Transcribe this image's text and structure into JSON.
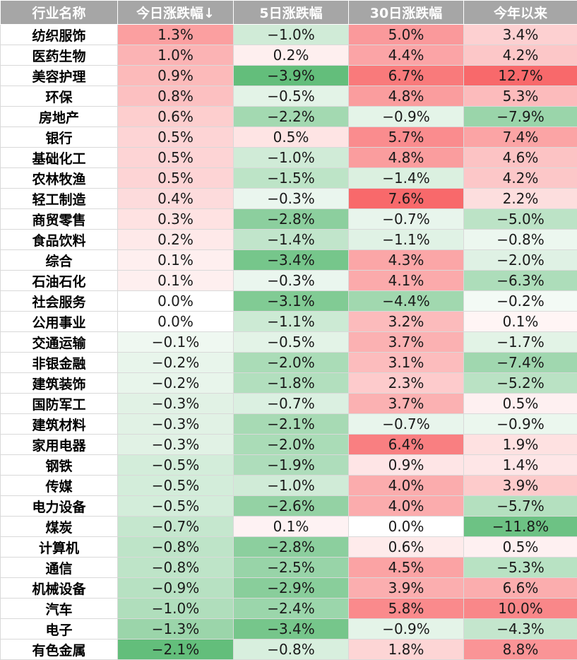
{
  "chart_data": {
    "type": "table",
    "columns": [
      "行业名称",
      "今日涨跌幅↓",
      "5日涨跌幅",
      "30日涨跌幅",
      "今年以来"
    ],
    "rows": [
      {
        "name": "纺织服饰",
        "values": [
          1.3,
          -1.0,
          5.0,
          3.4
        ]
      },
      {
        "name": "医药生物",
        "values": [
          1.0,
          0.2,
          4.4,
          4.2
        ]
      },
      {
        "name": "美容护理",
        "values": [
          0.9,
          -3.9,
          6.7,
          12.7
        ]
      },
      {
        "name": "环保",
        "values": [
          0.8,
          -0.5,
          4.8,
          5.3
        ]
      },
      {
        "name": "房地产",
        "values": [
          0.6,
          -2.2,
          -0.9,
          -7.9
        ]
      },
      {
        "name": "银行",
        "values": [
          0.5,
          0.5,
          5.7,
          7.4
        ]
      },
      {
        "name": "基础化工",
        "values": [
          0.5,
          -1.0,
          4.8,
          4.6
        ]
      },
      {
        "name": "农林牧渔",
        "values": [
          0.5,
          -1.5,
          -1.4,
          4.2
        ]
      },
      {
        "name": "轻工制造",
        "values": [
          0.4,
          -0.3,
          7.6,
          2.2
        ]
      },
      {
        "name": "商贸零售",
        "values": [
          0.3,
          -2.8,
          -0.7,
          -5.0
        ]
      },
      {
        "name": "食品饮料",
        "values": [
          0.2,
          -1.4,
          -1.1,
          -0.8
        ]
      },
      {
        "name": "综合",
        "values": [
          0.1,
          -3.4,
          4.3,
          -2.0
        ]
      },
      {
        "name": "石油石化",
        "values": [
          0.1,
          -0.3,
          4.1,
          -6.3
        ]
      },
      {
        "name": "社会服务",
        "values": [
          0.0,
          -3.1,
          -4.4,
          -0.2
        ]
      },
      {
        "name": "公用事业",
        "values": [
          0.0,
          -1.1,
          3.2,
          0.1
        ]
      },
      {
        "name": "交通运输",
        "values": [
          -0.1,
          -0.5,
          3.7,
          -1.7
        ]
      },
      {
        "name": "非银金融",
        "values": [
          -0.2,
          -2.0,
          3.1,
          -7.4
        ]
      },
      {
        "name": "建筑装饰",
        "values": [
          -0.2,
          -1.8,
          2.3,
          -5.2
        ]
      },
      {
        "name": "国防军工",
        "values": [
          -0.3,
          -0.7,
          3.7,
          0.5
        ]
      },
      {
        "name": "建筑材料",
        "values": [
          -0.3,
          -2.1,
          -0.7,
          -0.9
        ]
      },
      {
        "name": "家用电器",
        "values": [
          -0.3,
          -2.0,
          6.4,
          1.9
        ]
      },
      {
        "name": "钢铁",
        "values": [
          -0.5,
          -1.9,
          0.9,
          1.4
        ]
      },
      {
        "name": "传媒",
        "values": [
          -0.5,
          -1.0,
          4.0,
          3.9
        ]
      },
      {
        "name": "电力设备",
        "values": [
          -0.5,
          -2.6,
          4.0,
          -5.7
        ]
      },
      {
        "name": "煤炭",
        "values": [
          -0.7,
          0.1,
          0.0,
          -11.8
        ]
      },
      {
        "name": "计算机",
        "values": [
          -0.8,
          -2.8,
          0.6,
          0.5
        ]
      },
      {
        "name": "通信",
        "values": [
          -0.8,
          -2.5,
          4.5,
          -5.3
        ]
      },
      {
        "name": "机械设备",
        "values": [
          -0.9,
          -2.9,
          3.9,
          6.6
        ]
      },
      {
        "name": "汽车",
        "values": [
          -1.0,
          -2.4,
          5.8,
          10.0
        ]
      },
      {
        "name": "电子",
        "values": [
          -1.3,
          -3.4,
          -0.9,
          -4.3
        ]
      },
      {
        "name": "有色金属",
        "values": [
          -2.1,
          -0.8,
          1.8,
          8.8
        ]
      }
    ],
    "unit": "%",
    "colors": {
      "header_bg": "#a6a6a6",
      "header_text": "#ffffff",
      "positive": "#f8696b",
      "negative": "#63be7b",
      "neutral": "#ffffff"
    }
  }
}
